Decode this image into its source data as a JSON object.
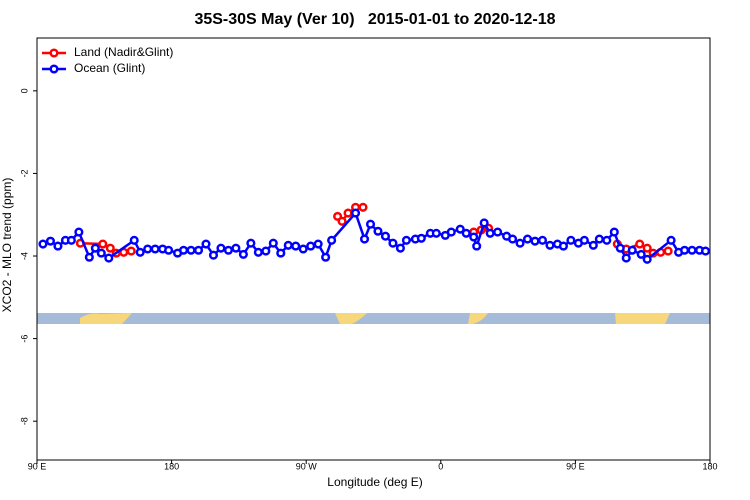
{
  "chart_data": {
    "type": "line",
    "title": "35S-30S May (Ver 10)   2015-01-01 to 2020-12-18",
    "xlabel": "Longitude (deg E)",
    "ylabel": "XCO2 - MLO trend (ppm)",
    "xlim": [
      90,
      540
    ],
    "ylim": [
      -8.94,
      1.28
    ],
    "xticks": [
      {
        "value": 90,
        "label": "90 E"
      },
      180,
      {
        "value": 270,
        "label": "90 W"
      },
      {
        "value": 360,
        "label": "0"
      },
      {
        "value": 450,
        "label": "90 E"
      },
      {
        "value": 540,
        "label": "180"
      }
    ],
    "yticks": [
      0,
      -2,
      -4,
      -6,
      -8
    ],
    "legend": "top-left",
    "series": [
      {
        "name": "Land (Nadir&Glint)",
        "color": "#ff0000",
        "x": [
          119,
          134,
          139,
          143,
          148,
          153,
          null,
          291,
          294,
          298,
          303,
          308,
          null,
          382,
          387,
          392,
          null,
          478,
          484,
          493,
          498,
          502,
          507,
          512
        ],
        "values": [
          -3.69,
          -3.71,
          -3.81,
          -3.93,
          -3.91,
          -3.88,
          null,
          -3.04,
          -3.16,
          -2.96,
          -2.82,
          -2.82,
          null,
          -3.42,
          -3.37,
          -3.33,
          null,
          -3.71,
          -3.83,
          -3.71,
          -3.81,
          -3.93,
          -3.91,
          -3.88
        ]
      },
      {
        "name": "Ocean (Glint)",
        "color": "#0000ff",
        "x": [
          94,
          99,
          104,
          109,
          113,
          118,
          125,
          129,
          133,
          138,
          155,
          159,
          164,
          169,
          174,
          178,
          184,
          188,
          193,
          198,
          203,
          208,
          213,
          218,
          223,
          228,
          233,
          238,
          243,
          248,
          253,
          258,
          263,
          268,
          273,
          278,
          283,
          287,
          303,
          309,
          313,
          318,
          323,
          328,
          333,
          337,
          343,
          347,
          353,
          357,
          363,
          367,
          373,
          377,
          382,
          384,
          389,
          393,
          398,
          404,
          408,
          413,
          418,
          423,
          428,
          433,
          438,
          442,
          447,
          452,
          456,
          462,
          466,
          471,
          476,
          480,
          484,
          488,
          494,
          498,
          514,
          519,
          523,
          528,
          533,
          537
        ],
        "values": [
          -3.71,
          -3.64,
          -3.76,
          -3.62,
          -3.62,
          -3.42,
          -4.03,
          -3.81,
          -3.93,
          -4.05,
          -3.62,
          -3.91,
          -3.83,
          -3.83,
          -3.83,
          -3.86,
          -3.93,
          -3.86,
          -3.86,
          -3.86,
          -3.71,
          -3.98,
          -3.81,
          -3.86,
          -3.81,
          -3.96,
          -3.69,
          -3.91,
          -3.88,
          -3.69,
          -3.93,
          -3.74,
          -3.76,
          -3.83,
          -3.76,
          -3.71,
          -4.03,
          -3.62,
          -2.96,
          -3.59,
          -3.23,
          -3.4,
          -3.52,
          -3.69,
          -3.81,
          -3.62,
          -3.59,
          -3.57,
          -3.45,
          -3.45,
          -3.5,
          -3.42,
          -3.35,
          -3.45,
          -3.54,
          -3.76,
          -3.2,
          -3.45,
          -3.42,
          -3.52,
          -3.59,
          -3.69,
          -3.59,
          -3.64,
          -3.62,
          -3.74,
          -3.71,
          -3.76,
          -3.62,
          -3.69,
          -3.62,
          -3.74,
          -3.59,
          -3.62,
          -3.42,
          -3.81,
          -4.05,
          -3.86,
          -3.96,
          -4.08,
          -3.62,
          -3.91,
          -3.86,
          -3.86,
          -3.86,
          -3.88
        ]
      }
    ]
  }
}
